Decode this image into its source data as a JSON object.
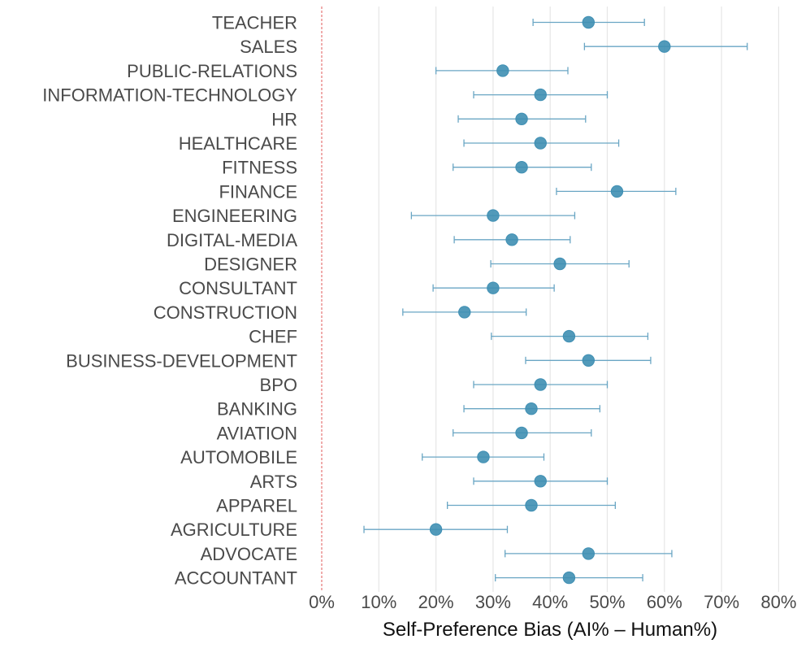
{
  "chart_data": {
    "type": "scatter",
    "subtype": "dot-with-error-bars",
    "title": "",
    "xlabel": "Self-Preference Bias (AI% – Human%)",
    "ylabel": "",
    "xlim": [
      0,
      80
    ],
    "x_ticks": [
      "0%",
      "10%",
      "20%",
      "30%",
      "40%",
      "50%",
      "60%",
      "70%",
      "80%"
    ],
    "x_tick_values": [
      0,
      10,
      20,
      30,
      40,
      50,
      60,
      70,
      80
    ],
    "reference_line": 0,
    "grid": "vertical",
    "legend": "none",
    "colors": {
      "point": "#3f8fb3",
      "error_bar": "#6aa6c4",
      "reference_line": "#e05a5a",
      "grid": "#e6e6e6"
    },
    "categories": [
      "TEACHER",
      "SALES",
      "PUBLIC-RELATIONS",
      "INFORMATION-TECHNOLOGY",
      "HR",
      "HEALTHCARE",
      "FITNESS",
      "FINANCE",
      "ENGINEERING",
      "DIGITAL-MEDIA",
      "DESIGNER",
      "CONSULTANT",
      "CONSTRUCTION",
      "CHEF",
      "BUSINESS-DEVELOPMENT",
      "BPO",
      "BANKING",
      "AVIATION",
      "AUTOMOBILE",
      "ARTS",
      "APPAREL",
      "AGRICULTURE",
      "ADVOCATE",
      "ACCOUNTANT"
    ],
    "values": [
      46.7,
      60.0,
      31.7,
      38.3,
      35.0,
      38.3,
      35.0,
      51.7,
      30.0,
      33.3,
      41.7,
      30.0,
      25.0,
      43.3,
      46.7,
      38.3,
      36.7,
      35.0,
      28.3,
      38.3,
      36.7,
      20.0,
      46.7,
      43.3
    ],
    "lower": [
      37.0,
      46.0,
      20.0,
      26.6,
      23.9,
      24.9,
      23.0,
      41.1,
      15.7,
      23.2,
      29.6,
      19.5,
      14.2,
      29.7,
      35.7,
      26.6,
      24.9,
      23.0,
      17.6,
      26.6,
      22.0,
      7.4,
      32.1,
      30.4
    ],
    "upper": [
      56.5,
      74.5,
      43.1,
      50.0,
      46.2,
      52.0,
      47.2,
      62.0,
      44.3,
      43.5,
      53.8,
      40.7,
      35.8,
      57.1,
      57.6,
      50.0,
      48.7,
      47.2,
      38.9,
      50.0,
      51.4,
      32.5,
      61.3,
      56.2
    ]
  }
}
